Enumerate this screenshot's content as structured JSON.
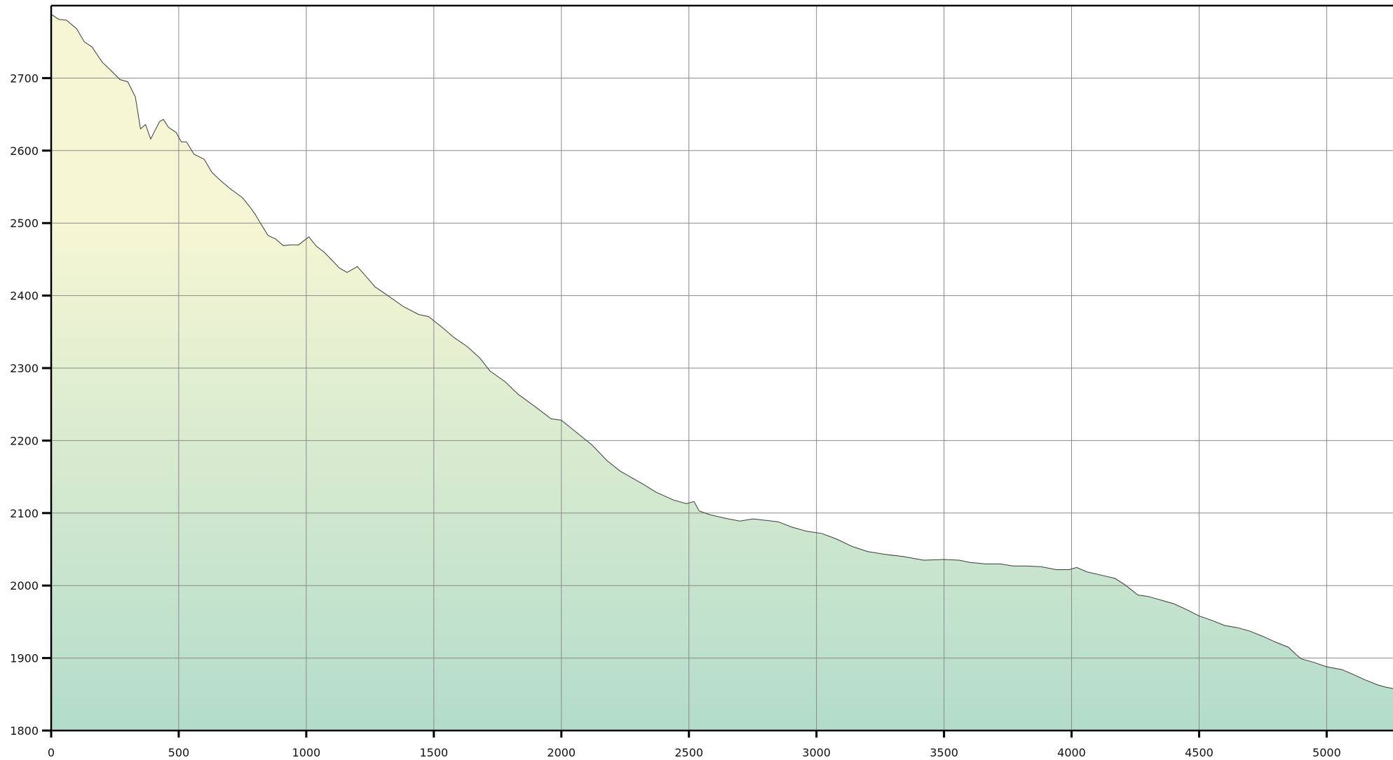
{
  "chart_data": {
    "type": "area",
    "title": "",
    "xlabel": "",
    "ylabel": "",
    "grid": true,
    "legend": "none",
    "xlim": [
      0,
      5260
    ],
    "ylim": [
      1800,
      2800
    ],
    "x_ticks": [
      0,
      500,
      1000,
      1500,
      2000,
      2500,
      3000,
      3500,
      4000,
      4500,
      5000
    ],
    "x_tick_labels": [
      "0",
      "500",
      "1000",
      "1500",
      "2000",
      "2500",
      "3000",
      "3500",
      "4000",
      "4500",
      "5000"
    ],
    "y_ticks": [
      1800,
      1900,
      2000,
      2100,
      2200,
      2300,
      2400,
      2500,
      2600,
      2700
    ],
    "y_tick_labels": [
      "1800",
      "1900",
      "2000",
      "2100",
      "2200",
      "2300",
      "2400",
      "2500",
      "2600",
      "2700"
    ],
    "fill_colors": {
      "top": "#f6f6d5",
      "bottom": "#b3dccb"
    },
    "line_color": "#3c3c3c",
    "series": [
      {
        "x": [
          0,
          30,
          60,
          100,
          130,
          160,
          200,
          230,
          270,
          300,
          330,
          350,
          370,
          390,
          410,
          425,
          440,
          460,
          490,
          510,
          530,
          560,
          600,
          630,
          660,
          700,
          750,
          780,
          800,
          820,
          850,
          880,
          910,
          940,
          970,
          1010,
          1040,
          1070,
          1100,
          1130,
          1160,
          1200,
          1230,
          1270,
          1320,
          1380,
          1440,
          1480,
          1530,
          1580,
          1630,
          1680,
          1720,
          1780,
          1830,
          1900,
          1960,
          2000,
          2060,
          2120,
          2180,
          2230,
          2280,
          2320,
          2370,
          2440,
          2490,
          2520,
          2540,
          2580,
          2640,
          2700,
          2750,
          2800,
          2850,
          2900,
          2960,
          3020,
          3080,
          3140,
          3200,
          3270,
          3340,
          3420,
          3500,
          3560,
          3600,
          3660,
          3720,
          3770,
          3820,
          3880,
          3940,
          3990,
          4020,
          4060,
          4120,
          4170,
          4210,
          4260,
          4300,
          4350,
          4400,
          4450,
          4500,
          4550,
          4600,
          4650,
          4700,
          4750,
          4800,
          4850,
          4880,
          4900,
          4950,
          5000,
          5060,
          5100,
          5150,
          5200,
          5230,
          5260
        ],
        "y": [
          2788,
          2781,
          2780,
          2768,
          2750,
          2743,
          2722,
          2712,
          2698,
          2695,
          2674,
          2630,
          2636,
          2616,
          2630,
          2640,
          2643,
          2632,
          2625,
          2612,
          2612,
          2595,
          2588,
          2570,
          2560,
          2548,
          2535,
          2522,
          2512,
          2500,
          2483,
          2478,
          2469,
          2470,
          2470,
          2481,
          2468,
          2460,
          2449,
          2438,
          2432,
          2440,
          2428,
          2412,
          2400,
          2385,
          2374,
          2371,
          2357,
          2342,
          2330,
          2314,
          2296,
          2281,
          2264,
          2246,
          2230,
          2228,
          2211,
          2194,
          2172,
          2158,
          2148,
          2140,
          2129,
          2118,
          2113,
          2116,
          2103,
          2098,
          2093,
          2089,
          2092,
          2090,
          2088,
          2081,
          2075,
          2072,
          2064,
          2054,
          2047,
          2043,
          2040,
          2035,
          2036,
          2035,
          2032,
          2030,
          2030,
          2027,
          2027,
          2026,
          2022,
          2022,
          2025,
          2019,
          2014,
          2010,
          2001,
          1987,
          1985,
          1980,
          1975,
          1967,
          1958,
          1952,
          1945,
          1942,
          1937,
          1930,
          1922,
          1915,
          1905,
          1899,
          1894,
          1888,
          1884,
          1878,
          1870,
          1863,
          1860,
          1858
        ]
      }
    ]
  }
}
